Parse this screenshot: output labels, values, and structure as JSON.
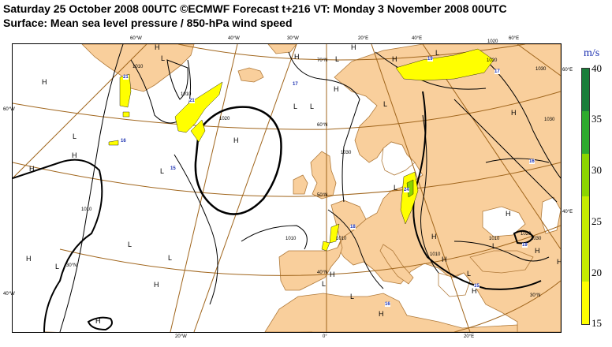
{
  "title": {
    "line1": "Saturday 25 October 2008 00UTC ©ECMWF Forecast t+216 VT: Monday 3 November 2008 00UTC",
    "line2": "Surface: Mean sea level pressure / 850-hPa wind speed"
  },
  "colors": {
    "land": "#f9cf9c",
    "coast": "#b07a3a",
    "graticule": "#a0651c",
    "isobar": "#000000",
    "wind_15_20": "#ffff00",
    "wind_20_25": "#c6ec00",
    "wind_25_30": "#8cd400",
    "wind_30_35": "#2eaa2e",
    "wind_35_40": "#1a7d3a",
    "wind_label": "#1a2fb0"
  },
  "legend": {
    "unit": "m/s",
    "ticks": [
      "40",
      "35",
      "30",
      "25",
      "20",
      "15"
    ]
  },
  "graticule_labels": {
    "top": [
      "60°W",
      "40°W",
      "30°W",
      "20°E",
      "40°E",
      "60°E"
    ],
    "bottom": [
      "20°W",
      "0°",
      "20°E"
    ],
    "left": [
      "60°W",
      "40°W"
    ],
    "right": [
      "60°E",
      "40°E"
    ],
    "inner": [
      "70°N",
      "60°N",
      "50°N",
      "40°N",
      "30°N",
      "30°N"
    ]
  },
  "pressure_centres": {
    "high": "H",
    "low": "L"
  },
  "isobar_labels": [
    "1010",
    "1010",
    "1020",
    "1030",
    "1010",
    "1010",
    "1010",
    "1020",
    "1030",
    "1030",
    "1020",
    "1010",
    "1030",
    "1010",
    "1020"
  ],
  "wind_max_labels": [
    "21",
    "21",
    "16",
    "15",
    "17",
    "17",
    "24",
    "18",
    "16",
    "19",
    "16",
    "15",
    "19"
  ]
}
